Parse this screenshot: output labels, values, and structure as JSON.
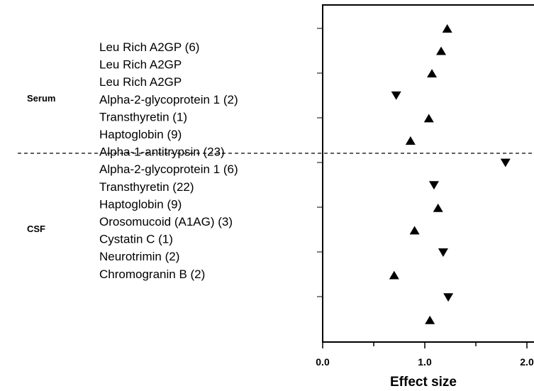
{
  "chart_data": {
    "type": "scatter",
    "title": "",
    "xlabel": "Effect size",
    "ylabel": "",
    "xlim": [
      0.0,
      2.0
    ],
    "x_ticks": [
      "0.0",
      "1.0",
      "2.0"
    ],
    "grid": false,
    "legend": "none",
    "marker_color": "#000000",
    "groups": [
      {
        "name": "Serum",
        "points": [
          {
            "label": "Leu Rich A2GP (6)",
            "x": 1.22,
            "marker": "triangle-up"
          },
          {
            "label": "Leu Rich A2GP",
            "x": 1.16,
            "marker": "triangle-up"
          },
          {
            "label": "Leu Rich A2GP",
            "x": 1.07,
            "marker": "triangle-up"
          },
          {
            "label": "Alpha-2-glycoprotein 1 (2)",
            "x": 0.72,
            "marker": "triangle-down"
          },
          {
            "label": "Transthyretin (1)",
            "x": 1.04,
            "marker": "triangle-up"
          },
          {
            "label": "Haptoglobin (9)",
            "x": 0.86,
            "marker": "triangle-up"
          }
        ]
      },
      {
        "name": "CSF",
        "points": [
          {
            "label": "Alpha-1-antitrypsin (23)",
            "x": 1.79,
            "marker": "triangle-down"
          },
          {
            "label": "Alpha-2-glycoprotein 1 (6)",
            "x": 1.09,
            "marker": "triangle-down"
          },
          {
            "label": "Transthyretin (22)",
            "x": 1.13,
            "marker": "triangle-up"
          },
          {
            "label": "Haptoglobin (9)",
            "x": 0.9,
            "marker": "triangle-up"
          },
          {
            "label": "Orosomucoid (A1AG) (3)",
            "x": 1.18,
            "marker": "triangle-down"
          },
          {
            "label": "Cystatin C (1)",
            "x": 0.7,
            "marker": "triangle-up"
          },
          {
            "label": "Neurotrimin (2)",
            "x": 1.23,
            "marker": "triangle-down"
          },
          {
            "label": "Chromogranin B (2)",
            "x": 1.05,
            "marker": "triangle-up"
          }
        ]
      }
    ]
  }
}
